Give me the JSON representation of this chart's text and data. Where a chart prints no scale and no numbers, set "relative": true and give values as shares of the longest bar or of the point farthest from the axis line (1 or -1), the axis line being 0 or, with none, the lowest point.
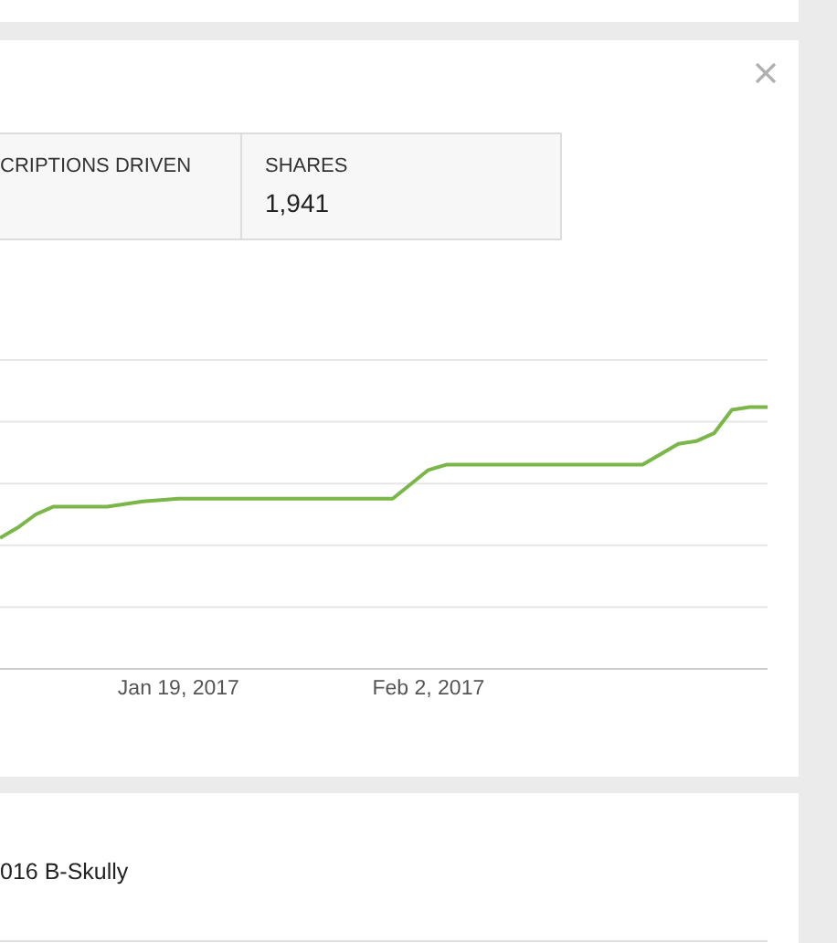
{
  "chart_data": {
    "type": "line",
    "relative": true,
    "grid": "y",
    "line_style": "solid",
    "marker": "none",
    "xlim": [
      "2017-01-09",
      "2017-02-21"
    ],
    "xticks": [
      {
        "value": "2017-01-19",
        "label": "Jan 19, 2017"
      },
      {
        "value": "2017-02-02",
        "label": "Feb 2, 2017"
      }
    ],
    "x": [
      "2017-01-09",
      "2017-01-10",
      "2017-01-11",
      "2017-01-12",
      "2017-01-15",
      "2017-01-17",
      "2017-01-19",
      "2017-01-31",
      "2017-02-02",
      "2017-02-03",
      "2017-02-04",
      "2017-02-14",
      "2017-02-16",
      "2017-02-17",
      "2017-02-18",
      "2017-02-19",
      "2017-02-20",
      "2017-02-21"
    ],
    "series": [
      {
        "color": "#7ab648",
        "values": [
          0.5,
          0.54,
          0.59,
          0.62,
          0.62,
          0.64,
          0.65,
          0.65,
          0.76,
          0.78,
          0.78,
          0.78,
          0.86,
          0.87,
          0.9,
          0.99,
          1,
          1
        ]
      }
    ],
    "annotations": [
      "CRIPTIONS DRIVEN",
      "SHARES",
      "1,941",
      "016 B-Skully"
    ]
  }
}
